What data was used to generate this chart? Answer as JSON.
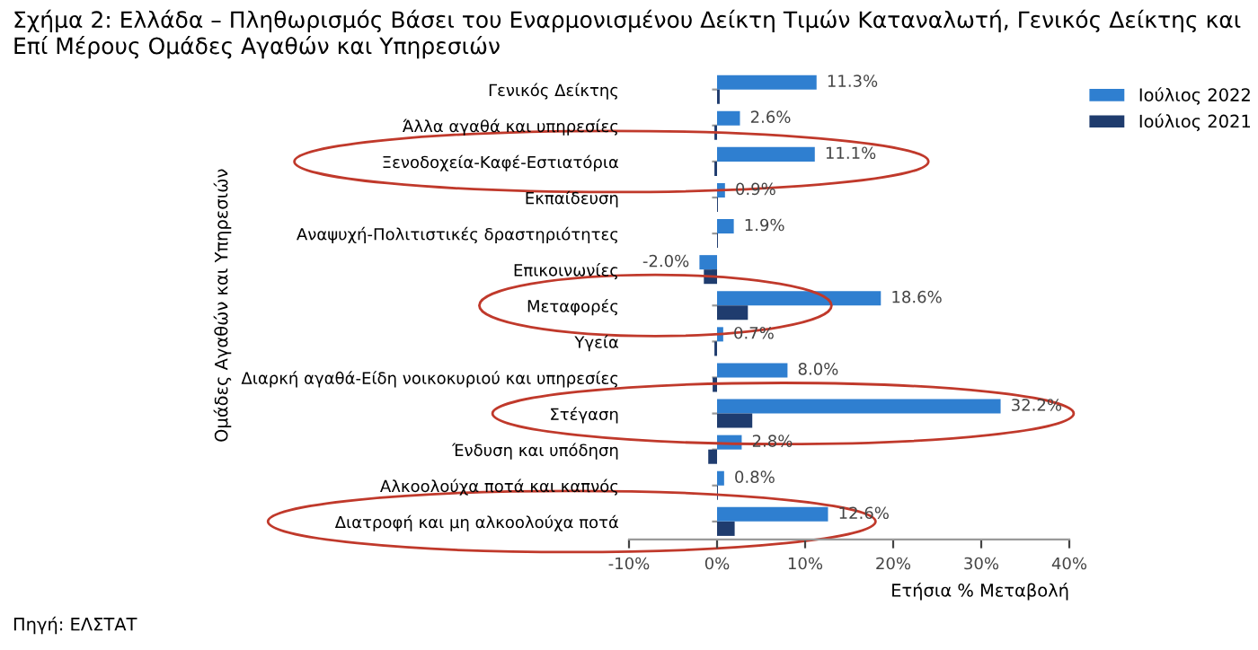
{
  "chart_data": {
    "type": "bar",
    "orientation": "horizontal",
    "title": "Σχήμα 2: Ελλάδα – Πληθωρισμός Βάσει του Εναρμονισμένου Δείκτη Τιμών Καταναλωτή, Γενικός Δείκτης και Επί Μέρους Ομάδες Αγαθών και Υπηρεσιών",
    "xlabel": "Ετήσια % Μεταβολή",
    "ylabel": "Ομάδες Αγαθών και Υπηρεσιών",
    "categories": [
      "Γενικός Δείκτης",
      "Άλλα αγαθά και υπηρεσίες",
      "Ξενοδοχεία-Καφέ-Εστιατόρια",
      "Εκπαίδευση",
      "Αναψυχή-Πολιτιστικές δραστηριότητες",
      "Επικοινωνίες",
      "Μεταφορές",
      "Υγεία",
      "Διαρκή αγαθά-Είδη νοικοκυριού και υπηρεσίες",
      "Στέγαση",
      "Ένδυση και υπόδηση",
      "Αλκοολούχα ποτά και καπνός",
      "Διατροφή και μη αλκοολούχα ποτά"
    ],
    "series": [
      {
        "name": "Ιούλιος 2022",
        "color": "#2f7fd0",
        "values": [
          11.3,
          2.6,
          11.1,
          0.9,
          1.9,
          -2.0,
          18.6,
          0.7,
          8.0,
          32.2,
          2.8,
          0.8,
          12.6
        ],
        "value_labels": [
          "11.3%",
          "2.6%",
          "11.1%",
          "0.9%",
          "1.9%",
          "-2.0%",
          "18.6%",
          "0.7%",
          "8.0%",
          "32.2%",
          "2.8%",
          "0.8%",
          "12.6%"
        ]
      },
      {
        "name": "Ιούλιος 2021",
        "color": "#1f3c6e",
        "values": [
          0.3,
          -0.3,
          -0.3,
          0.1,
          0.1,
          -1.5,
          3.5,
          -0.3,
          -0.5,
          4.0,
          -1.0,
          0.1,
          2.0
        ]
      }
    ],
    "xlim": [
      -10,
      40
    ],
    "xticks": [
      {
        "value": -10,
        "label": "-10%"
      },
      {
        "value": 0,
        "label": "0%"
      },
      {
        "value": 10,
        "label": "10%"
      },
      {
        "value": 20,
        "label": "20%"
      },
      {
        "value": 30,
        "label": "30%"
      },
      {
        "value": 40,
        "label": "40%"
      }
    ],
    "grid": false,
    "legend": "top right",
    "annotations": [
      "Πηγή: ΕΛΣΤΑΤ"
    ]
  }
}
